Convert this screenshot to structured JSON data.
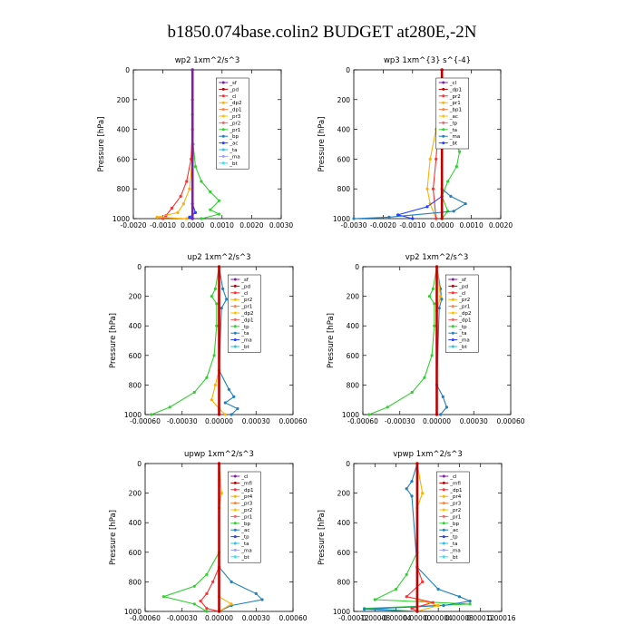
{
  "page": {
    "title": "b1850.074base.colin2  BUDGET at280E,-2N"
  },
  "chart_data": [
    {
      "type": "line",
      "title": "wp2   1xm^2/s^3",
      "ylabel": "Pressure  [hPa]",
      "xlim": [
        -0.002,
        0.003
      ],
      "ylim": [
        1000,
        0
      ],
      "xticks": [
        "-0.0020",
        "-0.0010",
        "0.0000",
        "0.0010",
        "0.0020",
        "0.0030"
      ],
      "yticks": [
        "0",
        "200",
        "400",
        "600",
        "800",
        "1000"
      ],
      "legend": [
        "_sf",
        "_pd",
        "_cl",
        "_dp2",
        "_dp1",
        "_pr3",
        "_pr2",
        "_pr1",
        "_bp",
        "_ac",
        "_ta",
        "_ma",
        "_bt"
      ],
      "series": [
        {
          "name": "_pr1",
          "color": "#ff3030",
          "points": [
            [
              0,
              0
            ],
            [
              0,
              200
            ],
            [
              0,
              400
            ],
            [
              -5e-05,
              600
            ],
            [
              -0.0002,
              750
            ],
            [
              -0.0004,
              850
            ],
            [
              -0.0007,
              930
            ],
            [
              -0.0009,
              980
            ],
            [
              -0.001,
              1000
            ]
          ]
        },
        {
          "name": "_ac",
          "color": "#30d030",
          "points": [
            [
              0,
              0
            ],
            [
              0,
              300
            ],
            [
              2e-05,
              500
            ],
            [
              0.0001,
              650
            ],
            [
              0.0003,
              750
            ],
            [
              0.0006,
              820
            ],
            [
              0.0009,
              880
            ],
            [
              0.0006,
              940
            ],
            [
              0.0009,
              970
            ],
            [
              0.0003,
              1000
            ]
          ]
        },
        {
          "name": "_pr2",
          "color": "#ffb000",
          "points": [
            [
              0,
              0
            ],
            [
              0,
              600
            ],
            [
              -0.0001,
              800
            ],
            [
              -0.0003,
              900
            ],
            [
              -0.0005,
              960
            ],
            [
              -0.0012,
              990
            ],
            [
              -0.0002,
              1000
            ]
          ]
        },
        {
          "name": "_ta",
          "color": "#2040ff",
          "points": [
            [
              0,
              0
            ],
            [
              0,
              900
            ],
            [
              0.0001,
              960
            ],
            [
              -0.0001,
              990
            ],
            [
              0,
              1000
            ]
          ]
        },
        {
          "name": "_sf",
          "color": "#8020a0",
          "points": [
            [
              0,
              0
            ],
            [
              0,
              1000
            ]
          ]
        }
      ]
    },
    {
      "type": "line",
      "title": "wp3   1xm^{3} s^{-4}",
      "ylabel": "Pressure  [hPa]",
      "xlim": [
        -0.003,
        0.002
      ],
      "ylim": [
        1000,
        0
      ],
      "xticks": [
        "-0.0030",
        "-0.0020",
        "-0.0010",
        "0.0000",
        "0.0010",
        "0.0020"
      ],
      "yticks": [
        "0",
        "200",
        "400",
        "600",
        "800",
        "1000"
      ],
      "legend": [
        "_cl",
        "_dp1",
        "_pr2",
        "_pr1",
        "_bp1",
        "_ac",
        "_tp",
        "_ta",
        "_ma",
        "_bt"
      ],
      "series": [
        {
          "name": "_ac",
          "color": "#30d030",
          "points": [
            [
              0,
              0
            ],
            [
              5e-05,
              200
            ],
            [
              0.0002,
              350
            ],
            [
              0.0004,
              450
            ],
            [
              0.0006,
              550
            ],
            [
              0.0005,
              650
            ],
            [
              0.0002,
              750
            ],
            [
              0,
              850
            ],
            [
              0.0002,
              950
            ],
            [
              0,
              1000
            ]
          ]
        },
        {
          "name": "_pr2",
          "color": "#ffb000",
          "points": [
            [
              0,
              0
            ],
            [
              -5e-05,
              200
            ],
            [
              -0.0002,
              400
            ],
            [
              -0.0004,
              600
            ],
            [
              -0.0005,
              800
            ],
            [
              -0.0004,
              900
            ],
            [
              -0.0002,
              1000
            ]
          ]
        },
        {
          "name": "_pr1",
          "color": "#ff3030",
          "points": [
            [
              0,
              0
            ],
            [
              -0.0001,
              300
            ],
            [
              -0.0002,
              600
            ],
            [
              -0.0003,
              800
            ],
            [
              -0.0002,
              1000
            ]
          ]
        },
        {
          "name": "_tp",
          "color": "#2080c0",
          "points": [
            [
              0,
              0
            ],
            [
              0,
              800
            ],
            [
              0.0003,
              850
            ],
            [
              0.0008,
              900
            ],
            [
              0.0004,
              950
            ],
            [
              -0.0018,
              990
            ],
            [
              -0.003,
              1000
            ]
          ]
        },
        {
          "name": "_ta",
          "color": "#2040ff",
          "points": [
            [
              0,
              0
            ],
            [
              0,
              850
            ],
            [
              -0.0005,
              920
            ],
            [
              -0.0015,
              975
            ],
            [
              -0.001,
              1000
            ]
          ]
        },
        {
          "name": "_cl",
          "color": "#c00000",
          "points": [
            [
              0,
              0
            ],
            [
              0,
              1000
            ]
          ]
        }
      ]
    },
    {
      "type": "line",
      "title": "up2   1xm^2/s^3",
      "ylabel": "Pressure  [hPa]",
      "xlim": [
        -0.0006,
        0.0006
      ],
      "ylim": [
        1000,
        0
      ],
      "xticks": [
        "-0.00060",
        "-0.00030",
        "0.00000",
        "0.00030",
        "0.00060"
      ],
      "yticks": [
        "0",
        "200",
        "400",
        "600",
        "800",
        "1000"
      ],
      "legend": [
        "_sf",
        "_pd",
        "_cl",
        "_pr2",
        "_pr1",
        "_dp2",
        "_dp1",
        "_tp",
        "_ta",
        "_ma",
        "_bt"
      ],
      "series": [
        {
          "name": "_dp2",
          "color": "#30d030",
          "points": [
            [
              0,
              0
            ],
            [
              -3e-05,
              150
            ],
            [
              -6e-05,
              200
            ],
            [
              -2e-05,
              250
            ],
            [
              -2e-05,
              400
            ],
            [
              -4e-05,
              600
            ],
            [
              -0.0001,
              750
            ],
            [
              -0.0002,
              850
            ],
            [
              -0.0004,
              950
            ],
            [
              -0.00055,
              1000
            ]
          ]
        },
        {
          "name": "_tp",
          "color": "#2080c0",
          "points": [
            [
              0,
              0
            ],
            [
              3e-05,
              150
            ],
            [
              6e-05,
              220
            ],
            [
              2e-05,
              280
            ],
            [
              0,
              700
            ],
            [
              8e-05,
              830
            ],
            [
              0.00012,
              880
            ],
            [
              5e-05,
              920
            ],
            [
              0.00015,
              960
            ],
            [
              0.0001,
              1000
            ]
          ]
        },
        {
          "name": "_pr2",
          "color": "#ffb000",
          "points": [
            [
              0,
              0
            ],
            [
              0,
              700
            ],
            [
              -3e-05,
              800
            ],
            [
              -6e-05,
              900
            ],
            [
              0,
              960
            ],
            [
              5e-05,
              1000
            ]
          ]
        },
        {
          "name": "_cl",
          "color": "#c00000",
          "points": [
            [
              0,
              0
            ],
            [
              0,
              1000
            ]
          ]
        }
      ]
    },
    {
      "type": "line",
      "title": "vp2   1xm^2/s^3",
      "ylabel": "Pressure  [hPa]",
      "xlim": [
        -0.0006,
        0.0006
      ],
      "ylim": [
        1000,
        0
      ],
      "xticks": [
        "-0.00060",
        "-0.00030",
        "0.00000",
        "0.00030",
        "0.00060"
      ],
      "yticks": [
        "0",
        "200",
        "400",
        "600",
        "800",
        "1000"
      ],
      "legend": [
        "_sf",
        "_pd",
        "_cl",
        "_pr2",
        "_pr1",
        "_dp2",
        "_dp1",
        "_tp",
        "_ta",
        "_ma",
        "_bt"
      ],
      "series": [
        {
          "name": "_dp2",
          "color": "#30d030",
          "points": [
            [
              0,
              0
            ],
            [
              -3e-05,
              150
            ],
            [
              -6e-05,
              200
            ],
            [
              -2e-05,
              250
            ],
            [
              -2e-05,
              400
            ],
            [
              -4e-05,
              600
            ],
            [
              -0.0001,
              750
            ],
            [
              -0.0002,
              850
            ],
            [
              -0.0004,
              950
            ],
            [
              -0.00055,
              1000
            ]
          ]
        },
        {
          "name": "_tp",
          "color": "#2080c0",
          "points": [
            [
              0,
              0
            ],
            [
              3e-05,
              150
            ],
            [
              4e-05,
              220
            ],
            [
              2e-05,
              280
            ],
            [
              0,
              800
            ],
            [
              5e-05,
              880
            ],
            [
              8e-05,
              950
            ],
            [
              3e-05,
              1000
            ]
          ]
        },
        {
          "name": "_pr2",
          "color": "#ffb000",
          "points": [
            [
              0,
              0
            ],
            [
              3e-05,
              200
            ],
            [
              0,
              300
            ],
            [
              0,
              1000
            ]
          ]
        },
        {
          "name": "_cl",
          "color": "#c00000",
          "points": [
            [
              0,
              0
            ],
            [
              0,
              1000
            ]
          ]
        }
      ]
    },
    {
      "type": "line",
      "title": "upwp   1xm^2/s^3",
      "ylabel": "Pressure  [hPa]",
      "xlim": [
        -0.0006,
        0.0006
      ],
      "ylim": [
        1000,
        0
      ],
      "xticks": [
        "-0.00060",
        "-0.00030",
        "0.00000",
        "0.00030",
        "0.00060"
      ],
      "yticks": [
        "0",
        "200",
        "400",
        "600",
        "800",
        "1000"
      ],
      "legend": [
        "_cl",
        "_mfl",
        "_dp1",
        "_pr4",
        "_pr3",
        "_pr2",
        "_pr1",
        "_bp",
        "_ac",
        "_tp",
        "_ta",
        "_ma",
        "_bt"
      ],
      "series": [
        {
          "name": "_ac",
          "color": "#30d030",
          "points": [
            [
              0,
              0
            ],
            [
              0,
              600
            ],
            [
              -0.0001,
              750
            ],
            [
              -0.0002,
              830
            ],
            [
              -0.00045,
              900
            ],
            [
              -0.0002,
              950
            ],
            [
              -0.0001,
              1000
            ]
          ]
        },
        {
          "name": "_tp",
          "color": "#2080c0",
          "points": [
            [
              0,
              0
            ],
            [
              0,
              700
            ],
            [
              0.0001,
              800
            ],
            [
              0.0003,
              880
            ],
            [
              0.00035,
              920
            ],
            [
              0.0001,
              960
            ],
            [
              0,
              1000
            ]
          ]
        },
        {
          "name": "_pr1",
          "color": "#ff3030",
          "points": [
            [
              0,
              0
            ],
            [
              0,
              700
            ],
            [
              -5e-05,
              800
            ],
            [
              -0.0001,
              880
            ],
            [
              -0.00015,
              930
            ],
            [
              -0.0001,
              980
            ],
            [
              0,
              1000
            ]
          ]
        },
        {
          "name": "_pr2",
          "color": "#ffb000",
          "points": [
            [
              0,
              0
            ],
            [
              2e-05,
              200
            ],
            [
              0,
              300
            ],
            [
              0,
              900
            ],
            [
              0.0001,
              950
            ],
            [
              0,
              1000
            ]
          ]
        },
        {
          "name": "_bp",
          "color": "#c00000",
          "points": [
            [
              0,
              0
            ],
            [
              0,
              1000
            ]
          ]
        }
      ]
    },
    {
      "type": "line",
      "title": "vpwp   1xm^2/s^3",
      "ylabel": "Pressure  [hPa]",
      "xlim": [
        -0.00012,
        0.00016
      ],
      "ylim": [
        1000,
        0
      ],
      "xticks": [
        "-0.00012",
        "-0.00008",
        "-0.00004",
        "0.00000",
        "0.00004",
        "0.00008",
        "0.00012",
        "0.00016"
      ],
      "yticks": [
        "0",
        "200",
        "400",
        "600",
        "800",
        "1000"
      ],
      "legend": [
        "_cl",
        "_mfl",
        "_dp1",
        "_pr4",
        "_pr3",
        "_pr2",
        "_pr1",
        "_bp",
        "_ac",
        "_tp",
        "_ta",
        "_ma",
        "_bt"
      ],
      "series": [
        {
          "name": "_ac",
          "color": "#30d030",
          "points": [
            [
              0,
              0
            ],
            [
              0,
              600
            ],
            [
              -2e-05,
              750
            ],
            [
              -4e-05,
              850
            ],
            [
              -8e-05,
              920
            ],
            [
              0.0001,
              950
            ],
            [
              -0.0001,
              980
            ],
            [
              0,
              1000
            ]
          ]
        },
        {
          "name": "_tp",
          "color": "#2080c0",
          "points": [
            [
              0,
              0
            ],
            [
              -1e-05,
              120
            ],
            [
              -2e-05,
              170
            ],
            [
              -1e-05,
              220
            ],
            [
              0,
              700
            ],
            [
              4e-05,
              850
            ],
            [
              8e-05,
              900
            ],
            [
              0.0001,
              930
            ],
            [
              5e-05,
              960
            ],
            [
              -0.0001,
              985
            ],
            [
              0,
              1000
            ]
          ]
        },
        {
          "name": "_pr1",
          "color": "#ff3030",
          "points": [
            [
              0,
              0
            ],
            [
              0,
              700
            ],
            [
              1e-05,
              800
            ],
            [
              -2e-05,
              900
            ],
            [
              3e-05,
              940
            ],
            [
              -1e-05,
              980
            ],
            [
              0,
              1000
            ]
          ]
        },
        {
          "name": "_pr2",
          "color": "#ffb000",
          "points": [
            [
              0,
              0
            ],
            [
              1e-05,
              200
            ],
            [
              0,
              300
            ],
            [
              0,
              920
            ],
            [
              4e-05,
              960
            ],
            [
              0,
              1000
            ]
          ]
        },
        {
          "name": "_bp",
          "color": "#c00000",
          "points": [
            [
              0,
              0
            ],
            [
              0,
              1000
            ]
          ]
        }
      ]
    }
  ]
}
